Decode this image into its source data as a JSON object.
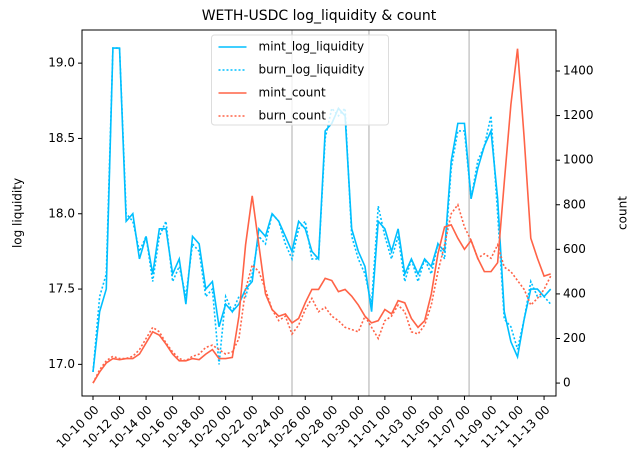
{
  "chart_data": {
    "type": "line",
    "title": "WETH-USDC log_liquidity & count",
    "y_label": "log liquidity",
    "y2_label": "count",
    "x": [
      0,
      0.5,
      1,
      1.5,
      2,
      2.5,
      3,
      3.5,
      4,
      4.5,
      5,
      5.5,
      6,
      6.5,
      7,
      7.5,
      8,
      8.5,
      9,
      9.5,
      10,
      10.5,
      11,
      11.5,
      12,
      12.5,
      13,
      13.5,
      14,
      14.5,
      15,
      15.5,
      16,
      16.5,
      17,
      17.5,
      18,
      18.5,
      19,
      19.5,
      20,
      20.5,
      21,
      21.5,
      22,
      22.5,
      23,
      23.5,
      24,
      24.5,
      25,
      25.5,
      26,
      26.5,
      27,
      27.5,
      28,
      28.5,
      29,
      29.5,
      30,
      30.5,
      31,
      31.5,
      32,
      32.5,
      33,
      33.5,
      34,
      34.5
    ],
    "series": [
      {
        "name": "mint_log_liquidity",
        "color": "#00bfff",
        "linestyle": "solid",
        "axis": "y",
        "values": [
          16.95,
          17.35,
          17.5,
          19.1,
          19.1,
          17.95,
          18.0,
          17.7,
          17.85,
          17.6,
          17.9,
          17.9,
          17.6,
          17.7,
          17.4,
          17.85,
          17.8,
          17.5,
          17.55,
          17.25,
          17.4,
          17.35,
          17.4,
          17.5,
          17.55,
          17.9,
          17.85,
          18.0,
          17.95,
          17.85,
          17.75,
          17.95,
          17.9,
          17.75,
          17.7,
          18.55,
          18.6,
          18.7,
          18.65,
          17.9,
          17.75,
          17.65,
          17.35,
          17.95,
          17.9,
          17.75,
          17.9,
          17.6,
          17.7,
          17.6,
          17.7,
          17.65,
          17.8,
          17.75,
          18.35,
          18.6,
          18.6,
          18.1,
          18.3,
          18.45,
          18.55,
          18.1,
          17.35,
          17.15,
          17.05,
          17.3,
          17.5,
          17.5,
          17.45,
          17.5
        ]
      },
      {
        "name": "burn_log_liquidity",
        "color": "#00bfff",
        "linestyle": "dotted",
        "axis": "y",
        "values": [
          16.95,
          17.45,
          17.6,
          19.1,
          19.1,
          18.0,
          17.95,
          17.75,
          17.85,
          17.55,
          17.85,
          17.95,
          17.55,
          17.65,
          17.45,
          17.8,
          17.75,
          17.45,
          17.5,
          17.0,
          17.45,
          17.35,
          17.45,
          17.45,
          17.6,
          17.85,
          17.8,
          18.0,
          17.95,
          17.8,
          17.7,
          17.9,
          17.95,
          17.7,
          17.7,
          18.5,
          18.7,
          18.65,
          18.7,
          17.85,
          17.7,
          17.6,
          17.4,
          18.05,
          17.85,
          17.7,
          17.85,
          17.55,
          17.7,
          17.55,
          17.7,
          17.6,
          17.8,
          17.7,
          18.3,
          18.55,
          18.55,
          18.1,
          18.35,
          18.45,
          18.65,
          18.0,
          17.3,
          17.25,
          17.1,
          17.3,
          17.55,
          17.45,
          17.45,
          17.4
        ]
      },
      {
        "name": "mint_count",
        "color": "#ff6347",
        "linestyle": "solid",
        "axis": "y2",
        "values": [
          0,
          50,
          90,
          110,
          105,
          110,
          110,
          130,
          180,
          230,
          215,
          175,
          130,
          100,
          100,
          110,
          105,
          130,
          150,
          110,
          110,
          115,
          300,
          620,
          840,
          620,
          400,
          330,
          300,
          310,
          270,
          290,
          360,
          420,
          420,
          470,
          460,
          410,
          420,
          390,
          350,
          300,
          270,
          280,
          330,
          310,
          370,
          360,
          290,
          250,
          280,
          400,
          580,
          700,
          710,
          650,
          600,
          640,
          560,
          500,
          500,
          540,
          900,
          1250,
          1500,
          1100,
          650,
          560,
          480,
          490
        ]
      },
      {
        "name": "burn_count",
        "color": "#ff6347",
        "linestyle": "dotted",
        "axis": "y2",
        "values": [
          0,
          60,
          100,
          120,
          110,
          110,
          120,
          150,
          200,
          250,
          230,
          180,
          140,
          110,
          100,
          120,
          130,
          160,
          170,
          150,
          130,
          140,
          200,
          420,
          530,
          500,
          420,
          330,
          280,
          300,
          220,
          260,
          330,
          380,
          320,
          340,
          300,
          280,
          250,
          240,
          230,
          300,
          250,
          200,
          280,
          300,
          350,
          320,
          230,
          220,
          260,
          350,
          500,
          620,
          760,
          800,
          700,
          640,
          560,
          580,
          560,
          620,
          520,
          500,
          460,
          420,
          350,
          380,
          420,
          480
        ]
      }
    ],
    "xlim": [
      -0.83,
      34.9
    ],
    "xticks": [
      {
        "value": 0,
        "label": "10-10 00"
      },
      {
        "value": 2,
        "label": "10-12 00"
      },
      {
        "value": 4,
        "label": "10-14 00"
      },
      {
        "value": 6,
        "label": "10-16 00"
      },
      {
        "value": 8,
        "label": "10-18 00"
      },
      {
        "value": 10,
        "label": "10-20 00"
      },
      {
        "value": 12,
        "label": "10-22 00"
      },
      {
        "value": 14,
        "label": "10-24 00"
      },
      {
        "value": 16,
        "label": "10-26 00"
      },
      {
        "value": 18,
        "label": "10-28 00"
      },
      {
        "value": 20,
        "label": "10-30 00"
      },
      {
        "value": 22,
        "label": "11-01 00"
      },
      {
        "value": 24,
        "label": "11-03 00"
      },
      {
        "value": 26,
        "label": "11-05 00"
      },
      {
        "value": 28,
        "label": "11-07 00"
      },
      {
        "value": 30,
        "label": "11-09 00"
      },
      {
        "value": 32,
        "label": "11-11 00"
      },
      {
        "value": 34,
        "label": "11-13 00"
      }
    ],
    "ylim": [
      16.79,
      19.22
    ],
    "yticks": [
      {
        "value": 17,
        "label": "17.0"
      },
      17.5,
      {
        "value": 18,
        "label": "18.0"
      },
      18.5,
      {
        "value": 19,
        "label": "19.0"
      }
    ],
    "y2lim": [
      -58,
      1584
    ],
    "y2ticks": [
      0,
      200,
      400,
      600,
      800,
      1000,
      1200,
      1400
    ],
    "vlines": [
      15,
      20.8,
      28.35
    ],
    "legend": "upper center"
  }
}
